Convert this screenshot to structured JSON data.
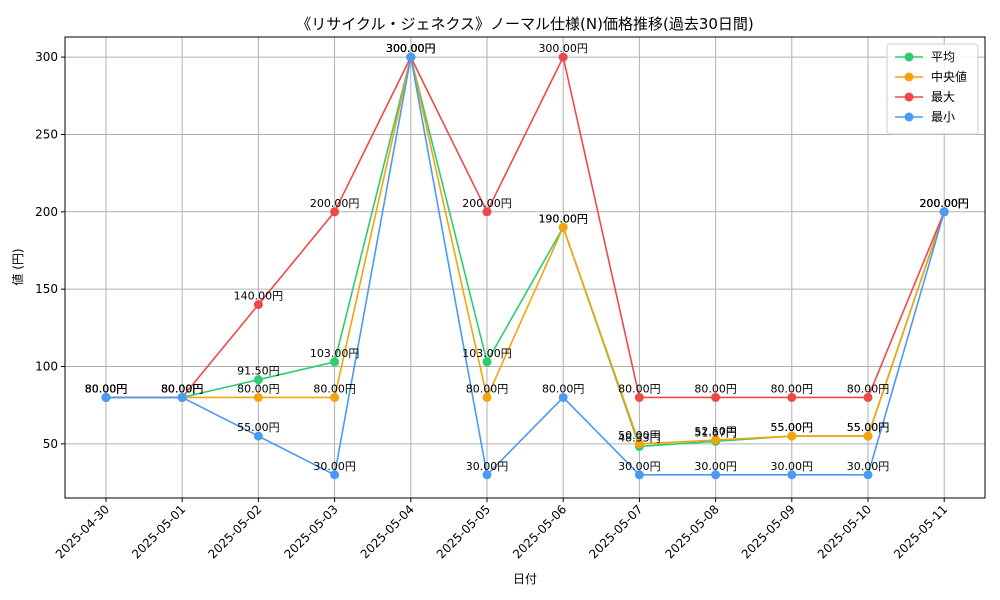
{
  "chart_data": {
    "type": "line",
    "title": "《リサイクル・ジェネクス》ノーマル仕様(N)価格推移(過去30日間)",
    "xlabel": "日付",
    "ylabel": "値 (円)",
    "x": [
      "2025-04-30",
      "2025-05-01",
      "2025-05-02",
      "2025-05-03",
      "2025-05-04",
      "2025-05-05",
      "2025-05-06",
      "2025-05-07",
      "2025-05-08",
      "2025-05-09",
      "2025-05-10",
      "2025-05-11"
    ],
    "ylim": [
      15,
      313
    ],
    "yticks": [
      50,
      100,
      150,
      200,
      250,
      300
    ],
    "grid": true,
    "legend_position": "top-right",
    "value_suffix": "円",
    "series": [
      {
        "name": "平均",
        "color": "#2ecc71",
        "values": [
          80,
          80,
          91.5,
          103,
          300,
          103,
          190,
          48.33,
          51.67,
          55,
          55,
          200
        ]
      },
      {
        "name": "中央値",
        "color": "#f5a30a",
        "values": [
          80,
          80,
          80,
          80,
          300,
          80,
          190,
          50,
          52.5,
          55,
          55,
          200
        ]
      },
      {
        "name": "最大",
        "color": "#f04848",
        "values": [
          80,
          80,
          140,
          200,
          300,
          200,
          300,
          80,
          80,
          80,
          80,
          200
        ]
      },
      {
        "name": "最小",
        "color": "#4a9af5",
        "values": [
          80,
          80,
          55,
          30,
          300,
          30,
          80,
          30,
          30,
          30,
          30,
          200
        ]
      }
    ]
  }
}
